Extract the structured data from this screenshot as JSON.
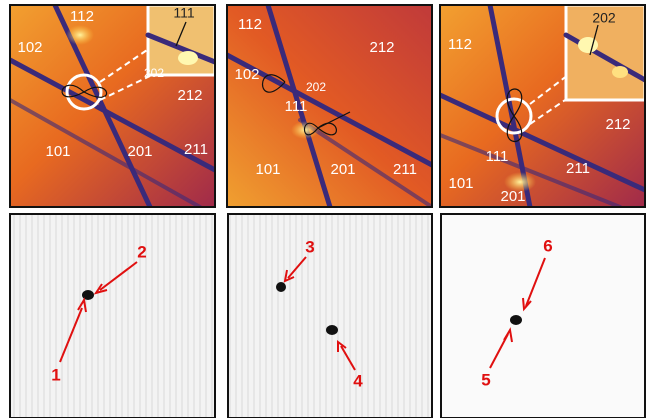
{
  "top_panels": [
    {
      "labels": [
        "112",
        "102",
        "202",
        "212",
        "101",
        "201",
        "211"
      ],
      "inset_label": "111"
    },
    {
      "labels": [
        "112",
        "212",
        "102",
        "202",
        "111",
        "101",
        "201",
        "211"
      ]
    },
    {
      "labels": [
        "112",
        "212",
        "111",
        "211",
        "101",
        "201"
      ],
      "inset_label": "202"
    }
  ],
  "bottom_panels": [
    {
      "labels": [
        "1",
        "2"
      ]
    },
    {
      "labels": [
        "3",
        "4"
      ]
    },
    {
      "labels": [
        "6",
        "5"
      ]
    }
  ]
}
